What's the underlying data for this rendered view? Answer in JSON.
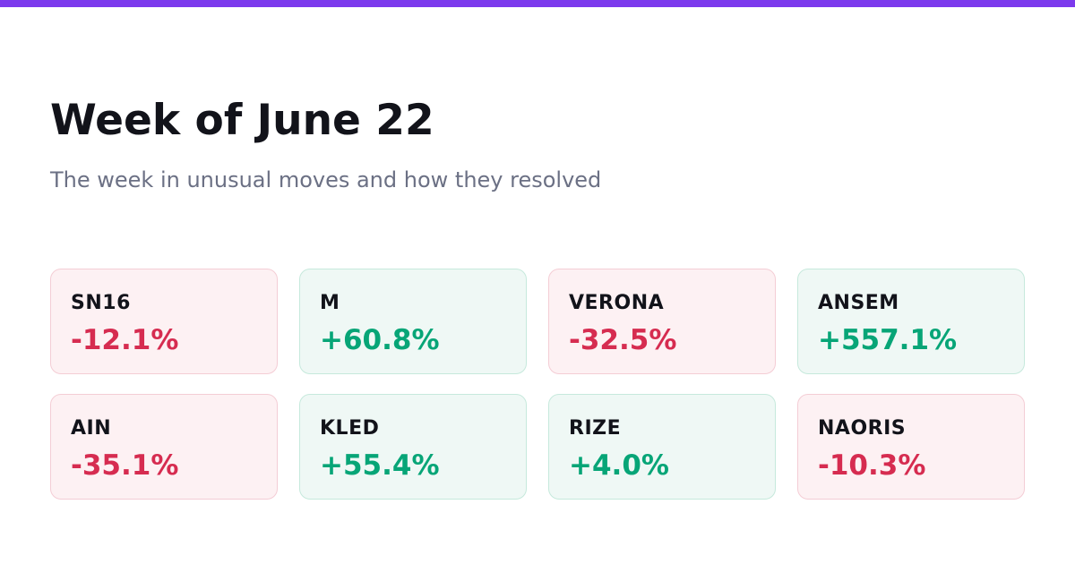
{
  "accent_color": "#7c3aed",
  "colors": {
    "negative": "#d62c50",
    "positive": "#07a577"
  },
  "header": {
    "title": "Week of June 22",
    "subtitle": "The week in unusual moves and how they resolved"
  },
  "movers": [
    {
      "ticker": "SN16",
      "change": "-12.1%",
      "direction": "down"
    },
    {
      "ticker": "M",
      "change": "+60.8%",
      "direction": "up"
    },
    {
      "ticker": "VERONA",
      "change": "-32.5%",
      "direction": "down"
    },
    {
      "ticker": "ANSEM",
      "change": "+557.1%",
      "direction": "up"
    },
    {
      "ticker": "AIN",
      "change": "-35.1%",
      "direction": "down"
    },
    {
      "ticker": "KLED",
      "change": "+55.4%",
      "direction": "up"
    },
    {
      "ticker": "RIZE",
      "change": "+4.0%",
      "direction": "up"
    },
    {
      "ticker": "NAORIS",
      "change": "-10.3%",
      "direction": "down"
    }
  ]
}
